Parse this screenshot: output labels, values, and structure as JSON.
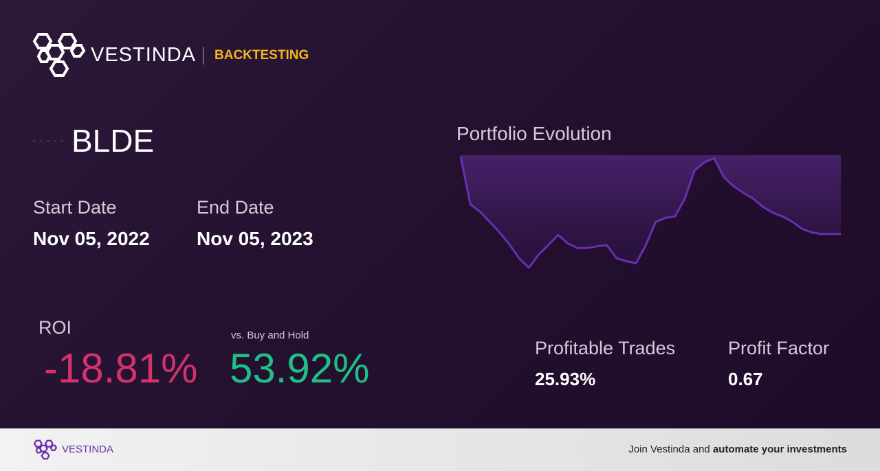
{
  "header": {
    "brand": "VESTINDA",
    "section": "BACKTESTING"
  },
  "ticker": "BLDE",
  "dates": {
    "start_label": "Start Date",
    "start_value": "Nov 05, 2022",
    "end_label": "End Date",
    "end_value": "Nov 05, 2023"
  },
  "roi": {
    "label": "ROI",
    "value": "-18.81%",
    "compare_label": "vs. Buy and Hold",
    "compare_value": "53.92%"
  },
  "stats": {
    "trades_label": "Profitable Trades",
    "trades_value": "25.93%",
    "factor_label": "Profit Factor",
    "factor_value": "0.67"
  },
  "chart_data": {
    "type": "line",
    "title": "Portfolio Evolution",
    "color": "#6a2fb0",
    "values": [
      100.0,
      88.4,
      86.6,
      84.1,
      81.6,
      78.7,
      75.3,
      73.0,
      76.2,
      78.5,
      81.0,
      78.9,
      77.8,
      77.8,
      78.2,
      78.5,
      75.3,
      74.6,
      74.1,
      78.5,
      84.1,
      85.1,
      85.5,
      89.8,
      96.6,
      98.6,
      99.6,
      95.0,
      92.8,
      91.2,
      89.8,
      87.8,
      86.4,
      85.5,
      84.2,
      82.5,
      81.6,
      81.2,
      81.2,
      81.2
    ]
  },
  "footer": {
    "brand": "VESTINDA",
    "text": "Join Vestinda and",
    "emphasis": "automate your investments"
  }
}
